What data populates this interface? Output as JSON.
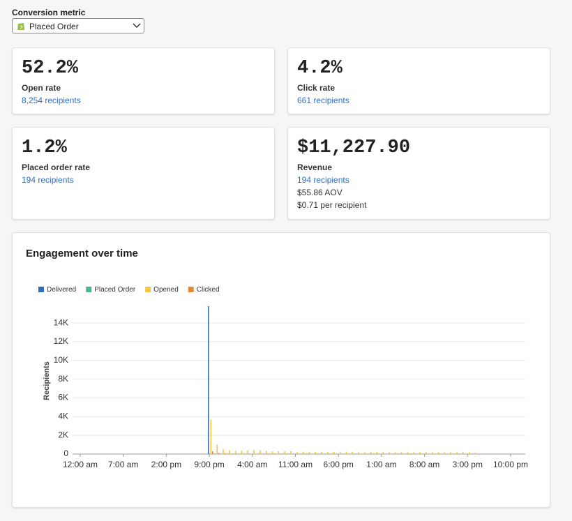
{
  "header": {
    "label": "Conversion metric",
    "dropdown": "Placed Order"
  },
  "cards": [
    {
      "value": "52.2%",
      "label": "Open rate",
      "link": "8,254 recipients"
    },
    {
      "value": "4.2%",
      "label": "Click rate",
      "link": "661 recipients"
    },
    {
      "value": "1.2%",
      "label": "Placed order rate",
      "link": "194 recipients"
    },
    {
      "value": "$11,227.90",
      "label": "Revenue",
      "link": "194 recipients",
      "details": [
        "$55.86 AOV",
        "$0.71 per recipient"
      ]
    }
  ],
  "chart_data": {
    "type": "bar",
    "title": "Engagement over time",
    "ylabel": "Recipients",
    "legend": "top-left",
    "grid": true,
    "categories": [
      "12:00 am",
      null,
      null,
      null,
      null,
      null,
      null,
      "7:00 am",
      null,
      null,
      null,
      null,
      null,
      null,
      "2:00 pm",
      null,
      null,
      null,
      null,
      null,
      null,
      "9:00 pm",
      null,
      null,
      null,
      null,
      null,
      null,
      "4:00 am",
      null,
      null,
      null,
      null,
      null,
      null,
      "11:00 am",
      null,
      null,
      null,
      null,
      null,
      null,
      "6:00 pm",
      null,
      null,
      null,
      null,
      null,
      null,
      "1:00 am",
      null,
      null,
      null,
      null,
      null,
      null,
      "8:00 am",
      null,
      null,
      null,
      null,
      null,
      null,
      "3:00 pm",
      null,
      null,
      null,
      null,
      null,
      null,
      "10:00 pm"
    ],
    "series": [
      {
        "name": "Delivered",
        "color": "#2f6eb5",
        "values": [
          0,
          0,
          0,
          0,
          0,
          0,
          0,
          0,
          0,
          0,
          0,
          0,
          0,
          0,
          0,
          0,
          0,
          0,
          0,
          0,
          0,
          15800,
          0,
          0,
          0,
          0,
          0,
          0,
          0,
          0,
          0,
          0,
          0,
          0,
          0,
          0,
          0,
          0,
          0,
          0,
          0,
          0,
          0,
          0,
          0,
          0,
          0,
          0,
          0,
          0,
          0,
          0,
          0,
          0,
          0,
          0,
          0,
          0,
          0,
          0,
          0,
          0,
          0,
          0,
          0,
          0,
          0,
          0,
          0,
          0,
          0
        ]
      },
      {
        "name": "Placed Order",
        "color": "#4fb58f",
        "values": [
          0,
          0,
          0,
          0,
          0,
          0,
          0,
          0,
          0,
          0,
          0,
          0,
          0,
          0,
          0,
          0,
          0,
          0,
          0,
          0,
          0,
          15,
          8,
          5,
          3,
          3,
          3,
          3,
          3,
          3,
          3,
          3,
          3,
          3,
          3,
          3,
          3,
          3,
          3,
          3,
          3,
          3,
          3,
          3,
          3,
          3,
          3,
          3,
          3,
          3,
          3,
          3,
          3,
          3,
          3,
          3,
          3,
          3,
          3,
          3,
          3,
          3,
          3,
          3,
          3,
          0,
          0,
          0,
          0,
          0,
          0
        ]
      },
      {
        "name": "Opened",
        "color": "#f2c744",
        "values": [
          0,
          0,
          0,
          0,
          0,
          0,
          0,
          0,
          0,
          0,
          0,
          0,
          0,
          0,
          0,
          0,
          0,
          0,
          0,
          0,
          0,
          3700,
          1000,
          500,
          400,
          350,
          350,
          400,
          450,
          400,
          350,
          300,
          300,
          300,
          300,
          250,
          250,
          250,
          250,
          250,
          250,
          250,
          250,
          250,
          250,
          200,
          200,
          250,
          250,
          200,
          200,
          200,
          200,
          200,
          200,
          200,
          200,
          200,
          200,
          200,
          200,
          200,
          200,
          200,
          150,
          0,
          0,
          0,
          0,
          0,
          0
        ]
      },
      {
        "name": "Clicked",
        "color": "#e8893a",
        "values": [
          0,
          0,
          0,
          0,
          0,
          0,
          0,
          0,
          0,
          0,
          0,
          0,
          0,
          0,
          0,
          0,
          0,
          0,
          0,
          0,
          0,
          300,
          120,
          60,
          40,
          40,
          40,
          40,
          40,
          40,
          40,
          40,
          40,
          40,
          20,
          20,
          20,
          20,
          20,
          20,
          20,
          20,
          20,
          20,
          20,
          20,
          20,
          20,
          20,
          20,
          20,
          20,
          20,
          20,
          20,
          20,
          20,
          20,
          20,
          20,
          20,
          20,
          20,
          20,
          10,
          0,
          0,
          0,
          0,
          0,
          0
        ]
      }
    ],
    "ylim": [
      0,
      15800
    ],
    "yticks": [
      0,
      {
        "value": 2000,
        "label": "2K"
      },
      {
        "value": 4000,
        "label": "4K"
      },
      {
        "value": 6000,
        "label": "6K"
      },
      {
        "value": 8000,
        "label": "8K"
      },
      {
        "value": 10000,
        "label": "10K"
      },
      {
        "value": 12000,
        "label": "12K"
      },
      {
        "value": 14000,
        "label": "14K"
      }
    ]
  }
}
